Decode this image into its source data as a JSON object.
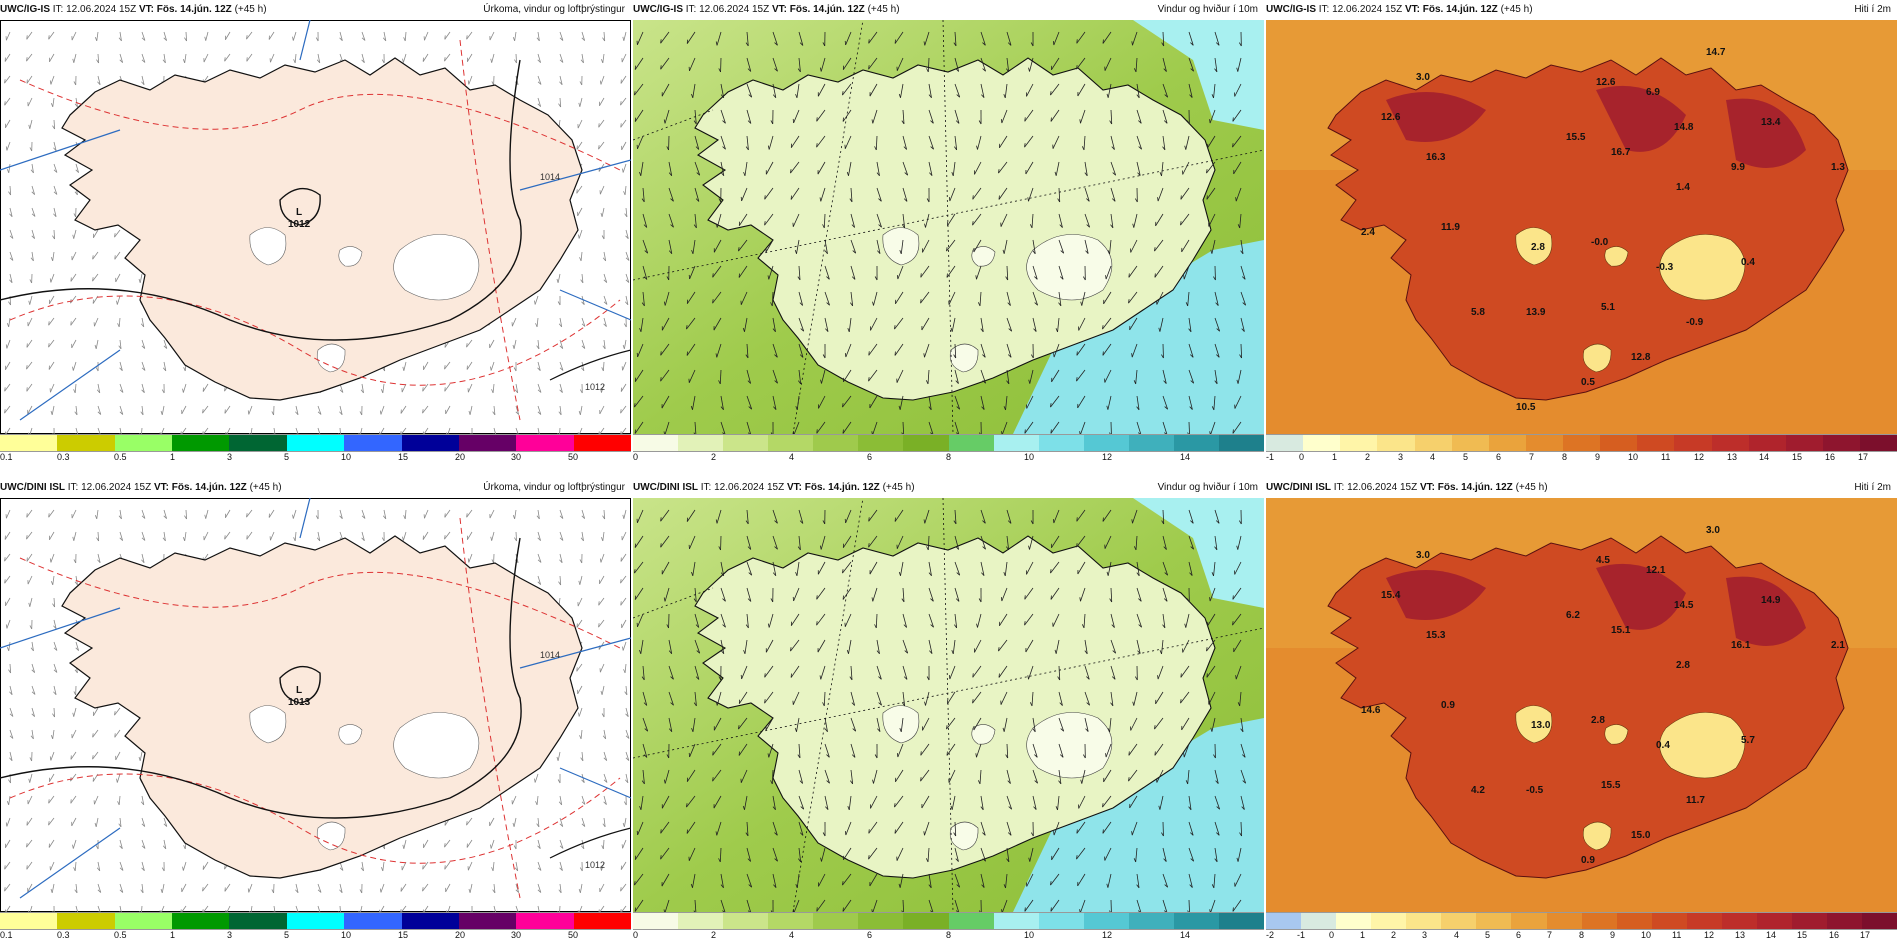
{
  "panels": [
    {
      "id": "igs-precip",
      "model": "UWC/IG-IS",
      "it_label": "IT:",
      "it_value": "12.06.2024 15Z",
      "vt_label": "VT:",
      "vt_value": "Fös. 14.jún. 12Z",
      "lead": "(+45 h)",
      "title": "Úrkoma, vindur og loftþrýstingur",
      "map_type": "precip",
      "scale_colors": [
        "#ffff99",
        "#cccc00",
        "#99ff66",
        "#009900",
        "#006633",
        "#00ffff",
        "#3366ff",
        "#000099",
        "#660066",
        "#ff0099",
        "#ff0000"
      ],
      "scale_ticks": [
        "0.1",
        "0.3",
        "0.5",
        "1",
        "3",
        "5",
        "10",
        "15",
        "20",
        "30",
        "50"
      ],
      "pressure_labels": [
        {
          "text": "L",
          "sub": "1012"
        },
        {
          "text": "1014"
        },
        {
          "text": "1012"
        }
      ]
    },
    {
      "id": "igs-wind",
      "model": "UWC/IG-IS",
      "it_label": "IT:",
      "it_value": "12.06.2024 15Z",
      "vt_label": "VT:",
      "vt_value": "Fös. 14.jún. 12Z",
      "lead": "(+45 h)",
      "title": "Vindur og hviður í 10m",
      "map_type": "wind",
      "scale_colors": [
        "#f7fbe6",
        "#e2f2b8",
        "#cbe58a",
        "#b4d866",
        "#9fca4c",
        "#8bbd36",
        "#7ab026",
        "#66cc66",
        "#a8f0f0",
        "#7de0e8",
        "#55c8d4",
        "#3fb0bc",
        "#2a98a4",
        "#1e808c"
      ],
      "scale_ticks": [
        "0",
        "2",
        "4",
        "6",
        "8",
        "10",
        "12",
        "14"
      ]
    },
    {
      "id": "igs-temp",
      "model": "UWC/IG-IS",
      "it_label": "IT:",
      "it_value": "12.06.2024 15Z",
      "vt_label": "VT:",
      "vt_value": "Fös. 14.jún. 12Z",
      "lead": "(+45 h)",
      "title": "Hiti í 2m",
      "map_type": "temp",
      "scale_colors": [
        "#d8eae0",
        "#ffffcc",
        "#fff5a8",
        "#fbe58a",
        "#f6d06c",
        "#f0bb52",
        "#eaa33c",
        "#e48c2e",
        "#dd7424",
        "#d65e20",
        "#cf4a22",
        "#c73a26",
        "#bd2e2a",
        "#b0242c",
        "#a01c2e",
        "#8e152e",
        "#7c0f2c"
      ],
      "scale_ticks": [
        "-1",
        "0",
        "1",
        "2",
        "3",
        "4",
        "5",
        "6",
        "7",
        "8",
        "9",
        "10",
        "11",
        "12",
        "13",
        "14",
        "15",
        "16",
        "17"
      ],
      "temps": [
        "3.0",
        "12.6",
        "12.6",
        "14.7",
        "6.9",
        "16.3",
        "15.5",
        "16.7",
        "14.8",
        "13.4",
        "9.9",
        "1.3",
        "1.4",
        "2.4",
        "11.9",
        "2.8",
        "-0.0",
        "-0.3",
        "0.4",
        "5.8",
        "13.9",
        "5.1",
        "-0.9",
        "12.8",
        "0.5",
        "10.5"
      ]
    },
    {
      "id": "dini-precip",
      "model": "UWC/DINI ISL",
      "it_label": "IT:",
      "it_value": "12.06.2024 15Z",
      "vt_label": "VT:",
      "vt_value": "Fös. 14.jún. 12Z",
      "lead": "(+45 h)",
      "title": "Úrkoma, vindur og loftþrýstingur",
      "map_type": "precip",
      "scale_colors": [
        "#ffff99",
        "#cccc00",
        "#99ff66",
        "#009900",
        "#006633",
        "#00ffff",
        "#3366ff",
        "#000099",
        "#660066",
        "#ff0099",
        "#ff0000"
      ],
      "scale_ticks": [
        "0.1",
        "0.3",
        "0.5",
        "1",
        "3",
        "5",
        "10",
        "15",
        "20",
        "30",
        "50"
      ],
      "pressure_labels": [
        {
          "text": "L",
          "sub": "1013"
        },
        {
          "text": "1014"
        },
        {
          "text": "1012"
        }
      ]
    },
    {
      "id": "dini-wind",
      "model": "UWC/DINI ISL",
      "it_label": "IT:",
      "it_value": "12.06.2024 15Z",
      "vt_label": "VT:",
      "vt_value": "Fös. 14.jún. 12Z",
      "lead": "(+45 h)",
      "title": "Vindur og hviður í 10m",
      "map_type": "wind",
      "scale_colors": [
        "#f7fbe6",
        "#e2f2b8",
        "#cbe58a",
        "#b4d866",
        "#9fca4c",
        "#8bbd36",
        "#7ab026",
        "#66cc66",
        "#a8f0f0",
        "#7de0e8",
        "#55c8d4",
        "#3fb0bc",
        "#2a98a4",
        "#1e808c"
      ],
      "scale_ticks": [
        "0",
        "2",
        "4",
        "6",
        "8",
        "10",
        "12",
        "14"
      ]
    },
    {
      "id": "dini-temp",
      "model": "UWC/DINI ISL",
      "it_label": "IT:",
      "it_value": "12.06.2024 15Z",
      "vt_label": "VT:",
      "vt_value": "Fös. 14.jún. 12Z",
      "lead": "(+45 h)",
      "title": "Hiti í 2m",
      "map_type": "temp",
      "scale_colors": [
        "#a8c8f0",
        "#d8eae0",
        "#ffffcc",
        "#fff5a8",
        "#fbe58a",
        "#f6d06c",
        "#f0bb52",
        "#eaa33c",
        "#e48c2e",
        "#dd7424",
        "#d65e20",
        "#cf4a22",
        "#c73a26",
        "#bd2e2a",
        "#b0242c",
        "#a01c2e",
        "#8e152e",
        "#7c0f2c"
      ],
      "scale_ticks": [
        "-2",
        "-1",
        "0",
        "1",
        "2",
        "3",
        "4",
        "5",
        "6",
        "7",
        "8",
        "9",
        "10",
        "11",
        "12",
        "13",
        "14",
        "15",
        "16",
        "17"
      ],
      "temps": [
        "3.0",
        "15.4",
        "4.5",
        "3.0",
        "12.1",
        "15.3",
        "6.2",
        "15.1",
        "14.5",
        "14.9",
        "16.1",
        "2.1",
        "2.8",
        "14.6",
        "0.9",
        "13.0",
        "2.8",
        "0.4",
        "5.7",
        "4.2",
        "-0.5",
        "15.5",
        "11.7",
        "15.0",
        "0.9"
      ]
    }
  ]
}
